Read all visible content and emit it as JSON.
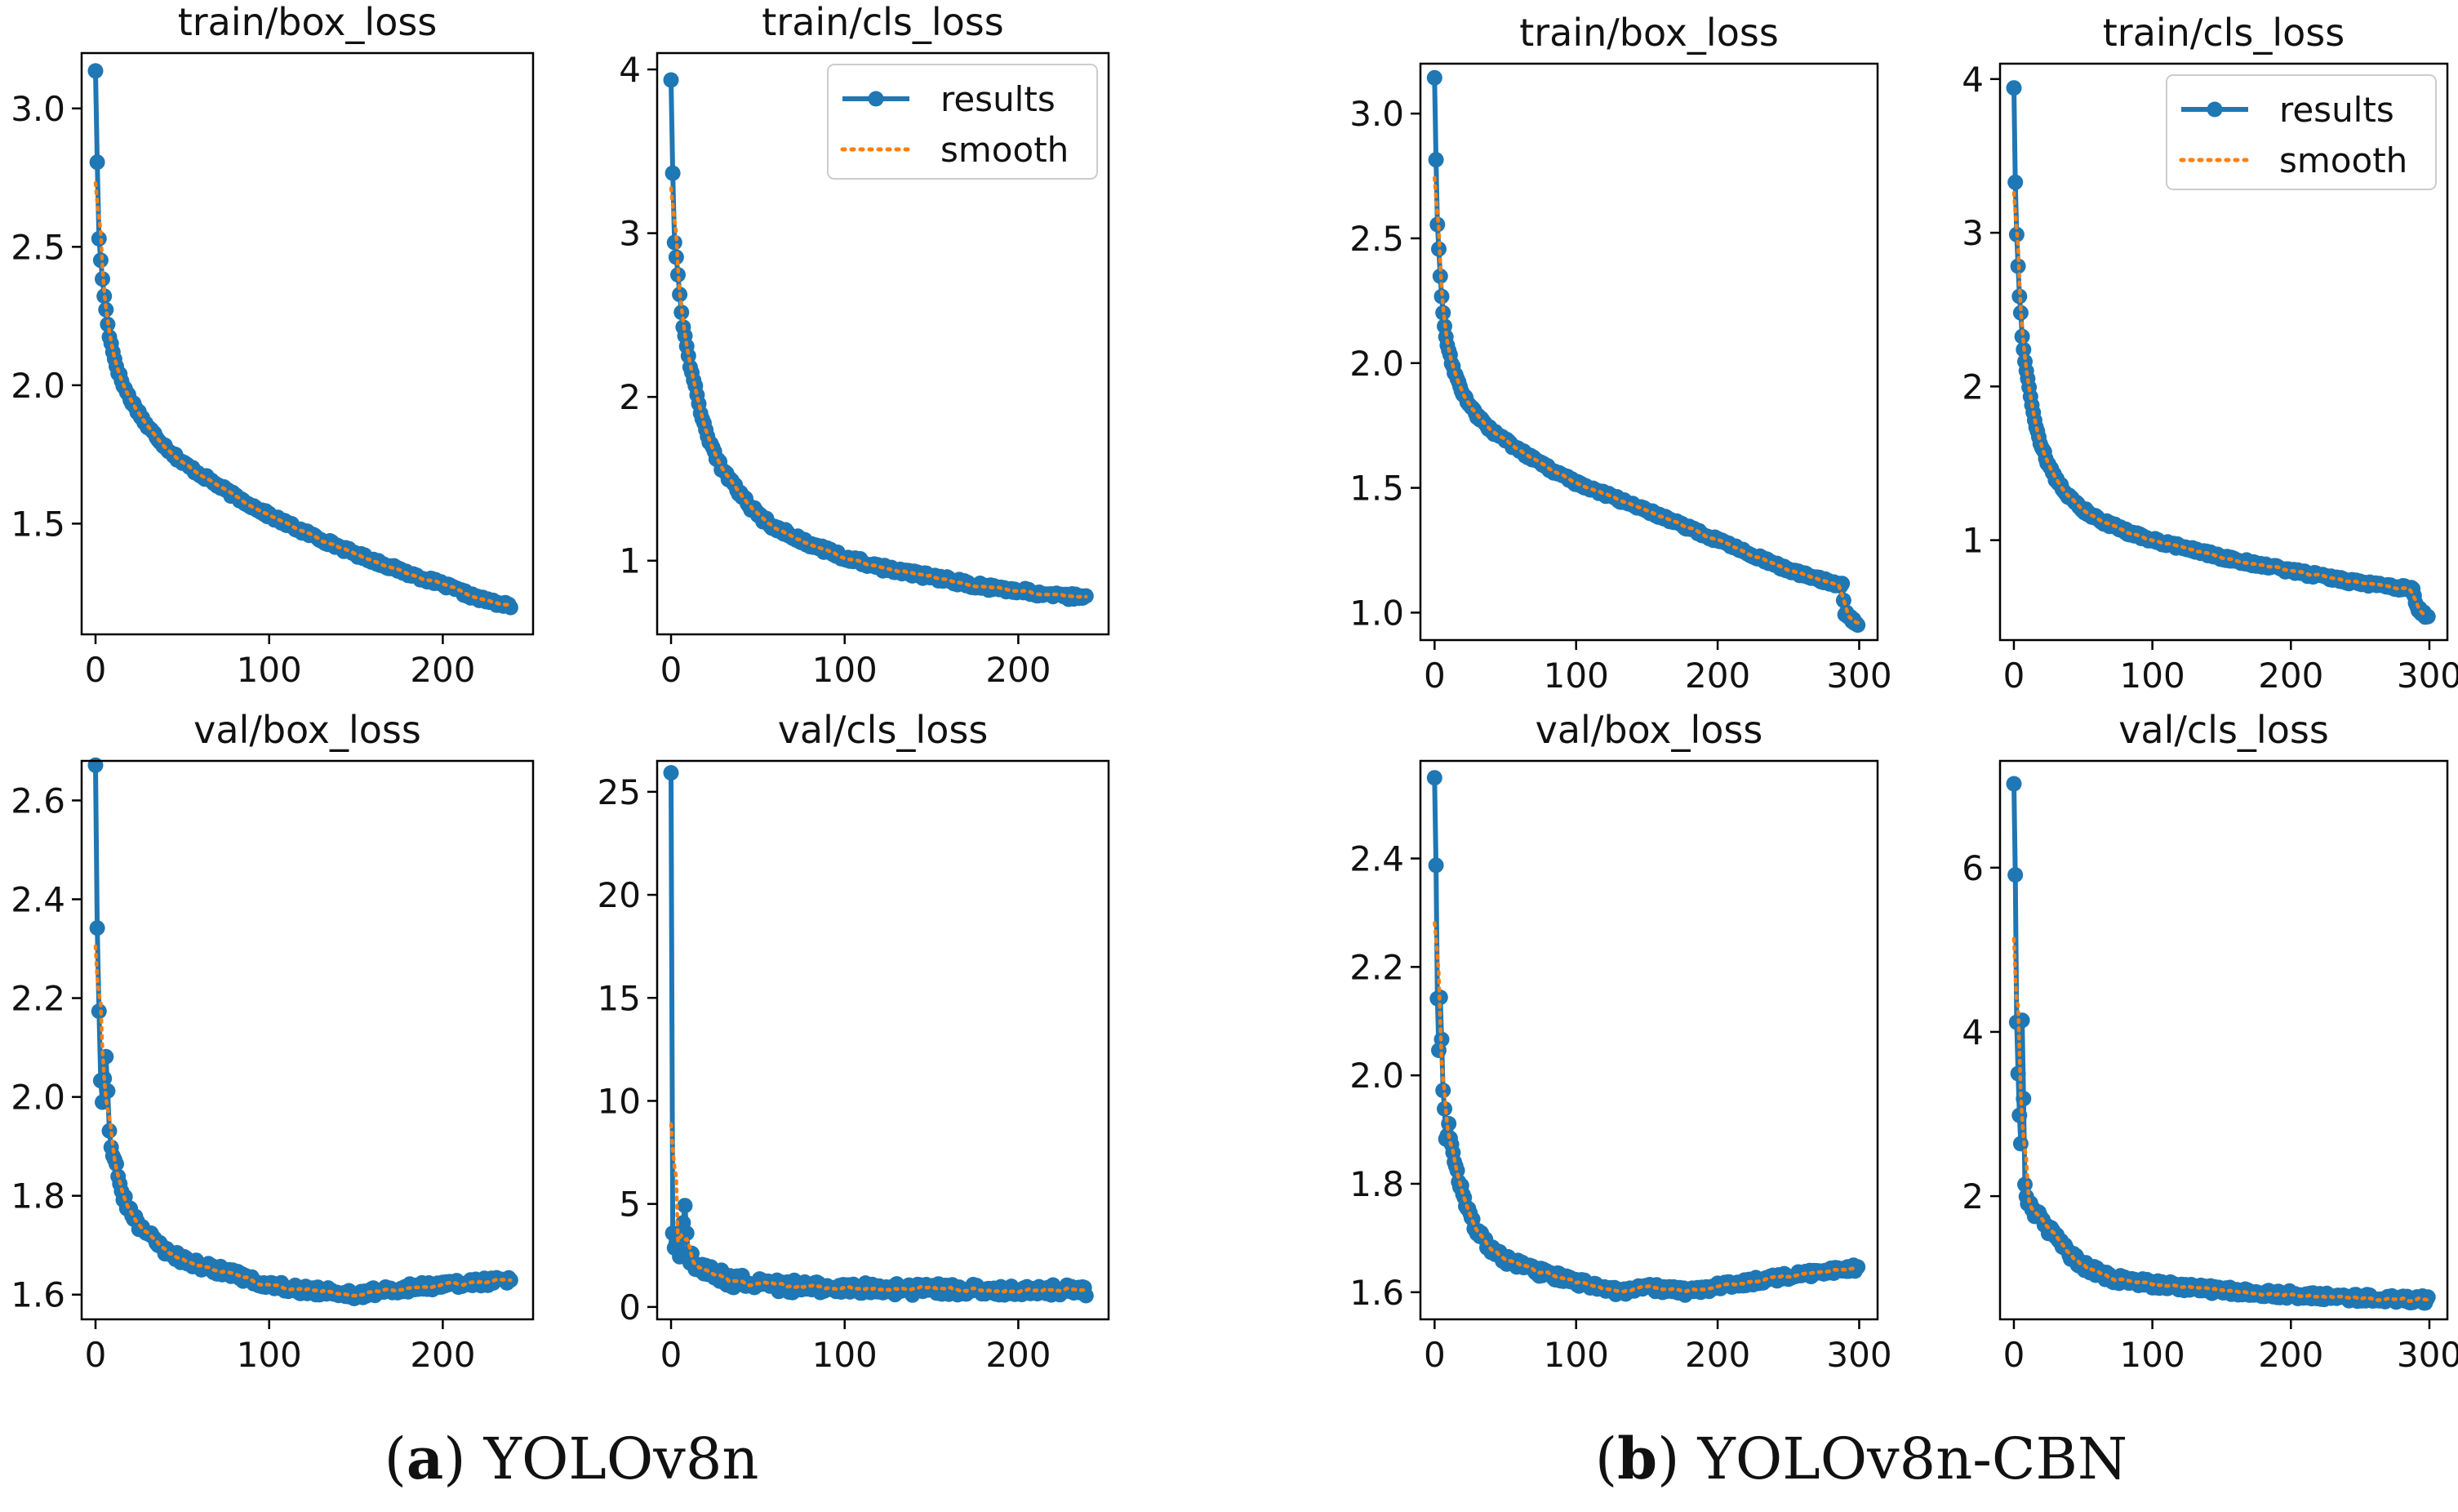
{
  "colors": {
    "results": "#1f77b4",
    "smooth": "#ff7f0e",
    "axis": "#000000",
    "text": "#111111"
  },
  "legend": {
    "results_label": "results",
    "smooth_label": "smooth",
    "placement": "upper-right"
  },
  "groups": [
    {
      "letter": "a",
      "model": "YOLOv8n"
    },
    {
      "letter": "b",
      "model": "YOLOv8n-CBN"
    }
  ],
  "chart_data": [
    {
      "type": "line",
      "group": "a",
      "title": "train/box_loss",
      "epochs": 240,
      "xlim": [
        -8,
        252
      ],
      "ylim": [
        1.1,
        3.2
      ],
      "xticks": [
        0,
        100,
        200
      ],
      "yticks": [
        1.5,
        2.0,
        2.5,
        3.0
      ],
      "ytick_labels": [
        "1.5",
        "2.0",
        "2.5",
        "3.0"
      ],
      "series": [
        {
          "name": "results",
          "anchors": [
            [
              0,
              3.14
            ],
            [
              1,
              2.8
            ],
            [
              2,
              2.53
            ],
            [
              4,
              2.38
            ],
            [
              6,
              2.27
            ],
            [
              8,
              2.18
            ],
            [
              10,
              2.12
            ],
            [
              13,
              2.05
            ],
            [
              16,
              2.0
            ],
            [
              20,
              1.95
            ],
            [
              25,
              1.9
            ],
            [
              30,
              1.85
            ],
            [
              40,
              1.78
            ],
            [
              50,
              1.72
            ],
            [
              60,
              1.68
            ],
            [
              80,
              1.6
            ],
            [
              100,
              1.53
            ],
            [
              120,
              1.47
            ],
            [
              150,
              1.39
            ],
            [
              180,
              1.32
            ],
            [
              200,
              1.28
            ],
            [
              220,
              1.23
            ],
            [
              240,
              1.2
            ]
          ],
          "noise": 0.012,
          "noise_decay": 0
        }
      ],
      "legend": false
    },
    {
      "type": "line",
      "group": "a",
      "title": "train/cls_loss",
      "epochs": 240,
      "xlim": [
        -8,
        252
      ],
      "ylim": [
        0.55,
        4.1
      ],
      "xticks": [
        0,
        100,
        200
      ],
      "yticks": [
        1,
        2,
        3,
        4
      ],
      "ytick_labels": [
        "1",
        "2",
        "3",
        "4"
      ],
      "series": [
        {
          "name": "results",
          "anchors": [
            [
              0,
              3.95
            ],
            [
              1,
              3.37
            ],
            [
              2,
              2.96
            ],
            [
              4,
              2.75
            ],
            [
              6,
              2.52
            ],
            [
              8,
              2.37
            ],
            [
              10,
              2.25
            ],
            [
              13,
              2.1
            ],
            [
              16,
              1.95
            ],
            [
              20,
              1.8
            ],
            [
              25,
              1.65
            ],
            [
              30,
              1.55
            ],
            [
              40,
              1.4
            ],
            [
              50,
              1.28
            ],
            [
              60,
              1.2
            ],
            [
              80,
              1.1
            ],
            [
              100,
              1.02
            ],
            [
              120,
              0.96
            ],
            [
              150,
              0.9
            ],
            [
              180,
              0.84
            ],
            [
              200,
              0.82
            ],
            [
              220,
              0.79
            ],
            [
              240,
              0.77
            ]
          ],
          "noise": 0.015,
          "noise_decay": 0
        }
      ],
      "legend": true
    },
    {
      "type": "line",
      "group": "a",
      "title": "val/box_loss",
      "epochs": 240,
      "xlim": [
        -8,
        252
      ],
      "ylim": [
        1.55,
        2.68
      ],
      "xticks": [
        0,
        100,
        200
      ],
      "yticks": [
        1.6,
        1.8,
        2.0,
        2.2,
        2.4,
        2.6
      ],
      "ytick_labels": [
        "1.6",
        "1.8",
        "2.0",
        "2.2",
        "2.4",
        "2.6"
      ],
      "series": [
        {
          "name": "results",
          "anchors": [
            [
              0,
              2.66
            ],
            [
              1,
              2.33
            ],
            [
              2,
              2.17
            ],
            [
              3,
              2.03
            ],
            [
              4,
              2.0
            ],
            [
              6,
              2.09
            ],
            [
              8,
              1.92
            ],
            [
              10,
              1.88
            ],
            [
              13,
              1.85
            ],
            [
              16,
              1.8
            ],
            [
              20,
              1.77
            ],
            [
              25,
              1.74
            ],
            [
              30,
              1.72
            ],
            [
              40,
              1.69
            ],
            [
              50,
              1.67
            ],
            [
              60,
              1.66
            ],
            [
              80,
              1.64
            ],
            [
              100,
              1.62
            ],
            [
              120,
              1.61
            ],
            [
              150,
              1.6
            ],
            [
              170,
              1.61
            ],
            [
              200,
              1.62
            ],
            [
              240,
              1.63
            ]
          ],
          "noise": 0.03,
          "noise_decay": 120
        }
      ],
      "legend": false
    },
    {
      "type": "line",
      "group": "a",
      "title": "val/cls_loss",
      "epochs": 240,
      "xlim": [
        -8,
        252
      ],
      "ylim": [
        -0.6,
        26.5
      ],
      "xticks": [
        0,
        100,
        200
      ],
      "yticks": [
        0,
        5,
        10,
        15,
        20,
        25
      ],
      "ytick_labels": [
        "0",
        "5",
        "10",
        "15",
        "20",
        "25"
      ],
      "series": [
        {
          "name": "results",
          "anchors": [
            [
              0,
              25.6
            ],
            [
              1,
              3.5
            ],
            [
              2,
              3.1
            ],
            [
              4,
              2.6
            ],
            [
              6,
              3.0
            ],
            [
              8,
              5.0
            ],
            [
              10,
              2.4
            ],
            [
              15,
              2.0
            ],
            [
              20,
              1.7
            ],
            [
              30,
              1.4
            ],
            [
              40,
              1.2
            ],
            [
              50,
              1.1
            ],
            [
              70,
              1.0
            ],
            [
              100,
              0.9
            ],
            [
              150,
              0.85
            ],
            [
              200,
              0.8
            ],
            [
              240,
              0.78
            ]
          ],
          "noise": 0.05,
          "noise_decay": 30
        }
      ],
      "legend": false
    },
    {
      "type": "line",
      "group": "b",
      "title": "train/box_loss",
      "epochs": 300,
      "xlim": [
        -10,
        313
      ],
      "ylim": [
        0.89,
        3.2
      ],
      "xticks": [
        0,
        100,
        200,
        300
      ],
      "yticks": [
        1.0,
        1.5,
        2.0,
        2.5,
        3.0
      ],
      "ytick_labels": [
        "1.0",
        "1.5",
        "2.0",
        "2.5",
        "3.0"
      ],
      "series": [
        {
          "name": "results",
          "anchors": [
            [
              0,
              3.14
            ],
            [
              1,
              2.82
            ],
            [
              2,
              2.55
            ],
            [
              4,
              2.35
            ],
            [
              6,
              2.2
            ],
            [
              8,
              2.1
            ],
            [
              10,
              2.05
            ],
            [
              13,
              1.98
            ],
            [
              16,
              1.93
            ],
            [
              20,
              1.88
            ],
            [
              25,
              1.83
            ],
            [
              30,
              1.79
            ],
            [
              40,
              1.73
            ],
            [
              50,
              1.69
            ],
            [
              60,
              1.65
            ],
            [
              80,
              1.58
            ],
            [
              100,
              1.52
            ],
            [
              150,
              1.41
            ],
            [
              200,
              1.29
            ],
            [
              250,
              1.17
            ],
            [
              280,
              1.12
            ],
            [
              288,
              1.11
            ],
            [
              290,
              1.0
            ],
            [
              295,
              0.97
            ],
            [
              300,
              0.95
            ]
          ],
          "noise": 0.01,
          "noise_decay": 0
        }
      ],
      "legend": false
    },
    {
      "type": "line",
      "group": "b",
      "title": "train/cls_loss",
      "epochs": 300,
      "xlim": [
        -10,
        313
      ],
      "ylim": [
        0.35,
        4.1
      ],
      "xticks": [
        0,
        100,
        200,
        300
      ],
      "yticks": [
        1,
        2,
        3,
        4
      ],
      "ytick_labels": [
        "1",
        "2",
        "3",
        "4"
      ],
      "series": [
        {
          "name": "results",
          "anchors": [
            [
              0,
              3.94
            ],
            [
              1,
              3.32
            ],
            [
              2,
              2.99
            ],
            [
              4,
              2.6
            ],
            [
              6,
              2.33
            ],
            [
              8,
              2.17
            ],
            [
              10,
              2.05
            ],
            [
              13,
              1.88
            ],
            [
              16,
              1.74
            ],
            [
              20,
              1.61
            ],
            [
              25,
              1.49
            ],
            [
              30,
              1.4
            ],
            [
              40,
              1.28
            ],
            [
              50,
              1.2
            ],
            [
              60,
              1.14
            ],
            [
              80,
              1.06
            ],
            [
              100,
              1.0
            ],
            [
              150,
              0.89
            ],
            [
              200,
              0.8
            ],
            [
              250,
              0.72
            ],
            [
              288,
              0.68
            ],
            [
              290,
              0.58
            ],
            [
              295,
              0.52
            ],
            [
              300,
              0.5
            ]
          ],
          "noise": 0.012,
          "noise_decay": 0
        }
      ],
      "legend": true
    },
    {
      "type": "line",
      "group": "b",
      "title": "val/box_loss",
      "epochs": 300,
      "xlim": [
        -10,
        313
      ],
      "ylim": [
        1.55,
        2.58
      ],
      "xticks": [
        0,
        100,
        200,
        300
      ],
      "yticks": [
        1.6,
        1.8,
        2.0,
        2.2,
        2.4
      ],
      "ytick_labels": [
        "1.6",
        "1.8",
        "2.0",
        "2.2",
        "2.4"
      ],
      "series": [
        {
          "name": "results",
          "anchors": [
            [
              0,
              2.55
            ],
            [
              1,
              2.39
            ],
            [
              2,
              2.15
            ],
            [
              3,
              2.05
            ],
            [
              4,
              2.14
            ],
            [
              6,
              1.98
            ],
            [
              8,
              1.88
            ],
            [
              10,
              1.91
            ],
            [
              13,
              1.85
            ],
            [
              16,
              1.82
            ],
            [
              20,
              1.78
            ],
            [
              25,
              1.74
            ],
            [
              30,
              1.71
            ],
            [
              40,
              1.68
            ],
            [
              50,
              1.66
            ],
            [
              70,
              1.64
            ],
            [
              100,
              1.62
            ],
            [
              130,
              1.6
            ],
            [
              150,
              1.61
            ],
            [
              180,
              1.6
            ],
            [
              200,
              1.61
            ],
            [
              250,
              1.63
            ],
            [
              300,
              1.645
            ]
          ],
          "noise": 0.025,
          "noise_decay": 150
        }
      ],
      "legend": false
    },
    {
      "type": "line",
      "group": "b",
      "title": "val/cls_loss",
      "epochs": 300,
      "xlim": [
        -10,
        313
      ],
      "ylim": [
        0.5,
        7.3
      ],
      "xticks": [
        0,
        100,
        200,
        300
      ],
      "yticks": [
        2,
        4,
        6
      ],
      "ytick_labels": [
        "2",
        "4",
        "6"
      ],
      "series": [
        {
          "name": "results",
          "anchors": [
            [
              0,
              7.05
            ],
            [
              1,
              5.85
            ],
            [
              2,
              4.1
            ],
            [
              3,
              3.5
            ],
            [
              4,
              3.0
            ],
            [
              5,
              2.6
            ],
            [
              6,
              4.1
            ],
            [
              8,
              2.2
            ],
            [
              10,
              1.9
            ],
            [
              13,
              1.85
            ],
            [
              16,
              1.8
            ],
            [
              20,
              1.7
            ],
            [
              25,
              1.6
            ],
            [
              30,
              1.5
            ],
            [
              40,
              1.3
            ],
            [
              50,
              1.15
            ],
            [
              70,
              1.0
            ],
            [
              100,
              0.93
            ],
            [
              150,
              0.85
            ],
            [
              200,
              0.8
            ],
            [
              250,
              0.76
            ],
            [
              300,
              0.74
            ]
          ],
          "noise": 0.03,
          "noise_decay": 60
        }
      ],
      "legend": false
    }
  ]
}
